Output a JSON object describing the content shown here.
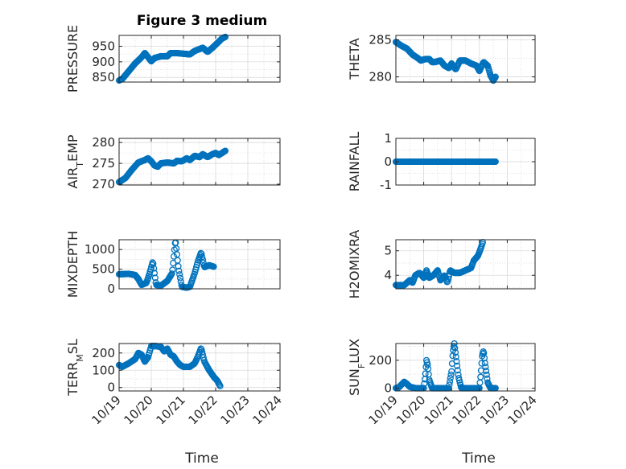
{
  "figure": {
    "title": "Figure 3 medium",
    "xlabel": "Time"
  },
  "colors": {
    "marker": "#0072BD",
    "axis": "#262626",
    "grid": "#d9d9d9",
    "background": "#ffffff"
  },
  "chart_data": [
    {
      "type": "scatter",
      "ylabel": "PRESSURE",
      "yticks": [
        850,
        900,
        950
      ],
      "ylim": [
        835,
        985
      ],
      "xlim": [
        0,
        5
      ],
      "xticks": [
        "10/19",
        "10/20",
        "10/21",
        "10/22",
        "10/23",
        "10/24"
      ],
      "anchors": [
        [
          0,
          840
        ],
        [
          0.1,
          845
        ],
        [
          0.3,
          870
        ],
        [
          0.5,
          895
        ],
        [
          0.7,
          915
        ],
        [
          0.8,
          928
        ],
        [
          0.9,
          915
        ],
        [
          1.0,
          902
        ],
        [
          1.1,
          912
        ],
        [
          1.3,
          918
        ],
        [
          1.5,
          918
        ],
        [
          1.6,
          928
        ],
        [
          1.8,
          928
        ],
        [
          2.0,
          926
        ],
        [
          2.2,
          924
        ],
        [
          2.35,
          935
        ],
        [
          2.6,
          945
        ],
        [
          2.75,
          932
        ],
        [
          2.9,
          945
        ],
        [
          3.05,
          960
        ],
        [
          3.2,
          975
        ],
        [
          3.3,
          980
        ]
      ]
    },
    {
      "type": "scatter",
      "ylabel": "THETA",
      "yticks": [
        280,
        285
      ],
      "ylim": [
        279.3,
        285.6
      ],
      "xlim": [
        0,
        5
      ],
      "xticks": [
        "10/19",
        "10/20",
        "10/21",
        "10/22",
        "10/23",
        "10/24"
      ],
      "anchors": [
        [
          0,
          284.7
        ],
        [
          0.2,
          284.2
        ],
        [
          0.4,
          283.8
        ],
        [
          0.6,
          283.0
        ],
        [
          0.8,
          282.5
        ],
        [
          0.9,
          282.2
        ],
        [
          1.05,
          282.4
        ],
        [
          1.2,
          282.4
        ],
        [
          1.3,
          282.0
        ],
        [
          1.4,
          282.0
        ],
        [
          1.6,
          282.2
        ],
        [
          1.75,
          281.5
        ],
        [
          1.9,
          281.2
        ],
        [
          2.0,
          281.8
        ],
        [
          2.15,
          281.0
        ],
        [
          2.3,
          282.2
        ],
        [
          2.5,
          282.2
        ],
        [
          2.7,
          281.8
        ],
        [
          2.9,
          281.5
        ],
        [
          3.0,
          280.8
        ],
        [
          3.15,
          282.0
        ],
        [
          3.3,
          281.5
        ],
        [
          3.4,
          280.2
        ],
        [
          3.5,
          279.5
        ],
        [
          3.58,
          280.0
        ]
      ]
    },
    {
      "type": "scatter",
      "ylabel": "AIR_TEMP",
      "yticks": [
        270,
        275,
        280
      ],
      "ylim": [
        269.8,
        281
      ],
      "xlim": [
        0,
        5
      ],
      "xticks": [
        "10/19",
        "10/20",
        "10/21",
        "10/22",
        "10/23",
        "10/24"
      ],
      "anchors": [
        [
          0,
          270.5
        ],
        [
          0.2,
          271.5
        ],
        [
          0.4,
          273.5
        ],
        [
          0.6,
          275.2
        ],
        [
          0.8,
          275.8
        ],
        [
          0.9,
          276.2
        ],
        [
          1.0,
          275.5
        ],
        [
          1.1,
          274.5
        ],
        [
          1.2,
          274.2
        ],
        [
          1.3,
          275.0
        ],
        [
          1.5,
          275.2
        ],
        [
          1.7,
          275.0
        ],
        [
          1.8,
          275.6
        ],
        [
          1.95,
          275.5
        ],
        [
          2.1,
          276.2
        ],
        [
          2.2,
          275.8
        ],
        [
          2.35,
          276.8
        ],
        [
          2.5,
          276.5
        ],
        [
          2.6,
          277.2
        ],
        [
          2.75,
          276.5
        ],
        [
          2.9,
          277.2
        ],
        [
          3.0,
          277.5
        ],
        [
          3.1,
          277.0
        ],
        [
          3.3,
          278.0
        ]
      ]
    },
    {
      "type": "scatter",
      "ylabel": "RAINFALL",
      "yticks": [
        -1,
        0,
        1
      ],
      "ylim": [
        -1,
        1
      ],
      "xlim": [
        0,
        5
      ],
      "xticks": [
        "10/19",
        "10/20",
        "10/21",
        "10/22",
        "10/23",
        "10/24"
      ],
      "anchors": [
        [
          0,
          0
        ],
        [
          3.58,
          0
        ]
      ]
    },
    {
      "type": "scatter",
      "ylabel": "MIXDEPTH",
      "yticks": [
        0,
        500,
        1000
      ],
      "ylim": [
        0,
        1250
      ],
      "xlim": [
        0,
        5
      ],
      "xticks": [
        "10/19",
        "10/20",
        "10/21",
        "10/22",
        "10/23",
        "10/24"
      ],
      "anchors": [
        [
          0,
          370
        ],
        [
          0.3,
          380
        ],
        [
          0.5,
          350
        ],
        [
          0.6,
          250
        ],
        [
          0.7,
          100
        ],
        [
          0.85,
          150
        ],
        [
          0.95,
          400
        ],
        [
          1.05,
          700
        ],
        [
          1.15,
          100
        ],
        [
          1.3,
          80
        ],
        [
          1.5,
          200
        ],
        [
          1.65,
          400
        ],
        [
          1.75,
          1250
        ],
        [
          1.85,
          500
        ],
        [
          1.95,
          50
        ],
        [
          2.1,
          30
        ],
        [
          2.2,
          50
        ],
        [
          2.35,
          400
        ],
        [
          2.45,
          700
        ],
        [
          2.55,
          930
        ],
        [
          2.65,
          550
        ],
        [
          2.8,
          600
        ],
        [
          2.95,
          560
        ]
      ]
    },
    {
      "type": "scatter",
      "ylabel": "H2OMIXRA",
      "yticks": [
        4,
        5
      ],
      "ylim": [
        3.45,
        5.45
      ],
      "xlim": [
        0,
        5
      ],
      "xticks": [
        "10/19",
        "10/20",
        "10/21",
        "10/22",
        "10/23",
        "10/24"
      ],
      "anchors": [
        [
          0,
          3.6
        ],
        [
          0.3,
          3.6
        ],
        [
          0.5,
          3.8
        ],
        [
          0.6,
          3.7
        ],
        [
          0.7,
          4.0
        ],
        [
          0.85,
          4.1
        ],
        [
          1.0,
          3.9
        ],
        [
          1.1,
          4.2
        ],
        [
          1.2,
          3.9
        ],
        [
          1.35,
          4.0
        ],
        [
          1.5,
          4.2
        ],
        [
          1.6,
          3.8
        ],
        [
          1.75,
          4.0
        ],
        [
          1.85,
          3.7
        ],
        [
          1.95,
          4.2
        ],
        [
          2.1,
          4.1
        ],
        [
          2.3,
          4.1
        ],
        [
          2.5,
          4.2
        ],
        [
          2.7,
          4.3
        ],
        [
          2.8,
          4.6
        ],
        [
          2.95,
          4.8
        ],
        [
          3.05,
          5.1
        ],
        [
          3.12,
          5.35
        ]
      ]
    },
    {
      "type": "scatter",
      "ylabel": "TERR_MSL",
      "yticks": [
        0,
        100,
        200
      ],
      "ylim": [
        -20,
        255
      ],
      "xlim": [
        0,
        5
      ],
      "xticks": [
        "10/19",
        "10/20",
        "10/21",
        "10/22",
        "10/23",
        "10/24"
      ],
      "anchors": [
        [
          0,
          130
        ],
        [
          0.1,
          120
        ],
        [
          0.3,
          140
        ],
        [
          0.5,
          165
        ],
        [
          0.6,
          200
        ],
        [
          0.7,
          190
        ],
        [
          0.8,
          150
        ],
        [
          0.9,
          175
        ],
        [
          1.0,
          240
        ],
        [
          1.15,
          240
        ],
        [
          1.3,
          235
        ],
        [
          1.4,
          210
        ],
        [
          1.5,
          225
        ],
        [
          1.6,
          190
        ],
        [
          1.7,
          180
        ],
        [
          1.8,
          150
        ],
        [
          1.9,
          130
        ],
        [
          2.0,
          120
        ],
        [
          2.2,
          120
        ],
        [
          2.35,
          140
        ],
        [
          2.45,
          180
        ],
        [
          2.55,
          230
        ],
        [
          2.65,
          150
        ],
        [
          2.8,
          100
        ],
        [
          2.95,
          60
        ],
        [
          3.05,
          40
        ],
        [
          3.15,
          5
        ]
      ]
    },
    {
      "type": "scatter",
      "ylabel": "SUN_FLUX",
      "yticks": [
        0,
        200
      ],
      "ylim": [
        -20,
        320
      ],
      "xlim": [
        0,
        5
      ],
      "xticks": [
        "10/19",
        "10/20",
        "10/21",
        "10/22",
        "10/23",
        "10/24"
      ],
      "anchors": [
        [
          0,
          0
        ],
        [
          0.1,
          5
        ],
        [
          0.2,
          25
        ],
        [
          0.3,
          45
        ],
        [
          0.4,
          30
        ],
        [
          0.5,
          10
        ],
        [
          0.7,
          0
        ],
        [
          0.9,
          0
        ],
        [
          1.0,
          0
        ],
        [
          1.05,
          80
        ],
        [
          1.1,
          200
        ],
        [
          1.15,
          160
        ],
        [
          1.2,
          60
        ],
        [
          1.3,
          0
        ],
        [
          1.9,
          0
        ],
        [
          2.0,
          120
        ],
        [
          2.05,
          260
        ],
        [
          2.1,
          320
        ],
        [
          2.15,
          240
        ],
        [
          2.25,
          80
        ],
        [
          2.35,
          0
        ],
        [
          3.0,
          0
        ],
        [
          3.05,
          100
        ],
        [
          3.1,
          230
        ],
        [
          3.15,
          270
        ],
        [
          3.2,
          180
        ],
        [
          3.3,
          40
        ],
        [
          3.4,
          0
        ],
        [
          3.58,
          0
        ]
      ]
    }
  ]
}
